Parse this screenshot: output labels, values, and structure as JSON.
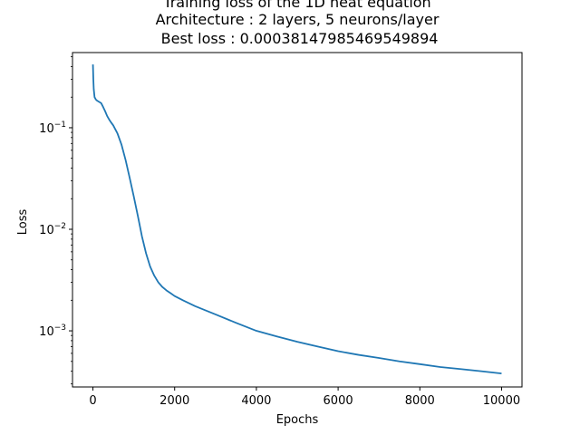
{
  "chart_data": {
    "type": "line",
    "title_lines": [
      "Training loss of the 1D heat equation",
      "Architecture : 2 layers, 5 neurons/layer",
      " Best loss : 0.00038147985469549894"
    ],
    "xlabel": "Epochs",
    "ylabel": "Loss",
    "xlim": [
      -500,
      10500
    ],
    "ylim": [
      0.00028,
      0.55
    ],
    "yscale": "log",
    "grid": false,
    "legend": "none",
    "x_ticks": [
      0,
      2000,
      4000,
      6000,
      8000,
      10000
    ],
    "x_tick_labels": [
      "0",
      "2000",
      "4000",
      "6000",
      "8000",
      "10000"
    ],
    "y_ticks": [
      0.1,
      0.01,
      0.001
    ],
    "y_tick_labels": [
      {
        "base": "10",
        "exp": "−1"
      },
      {
        "base": "10",
        "exp": "−2"
      },
      {
        "base": "10",
        "exp": "−3"
      }
    ],
    "series": [
      {
        "color": "#1f77b4",
        "x": [
          0,
          10,
          20,
          40,
          70,
          100,
          150,
          200,
          250,
          300,
          350,
          400,
          450,
          500,
          600,
          700,
          800,
          900,
          1000,
          1100,
          1200,
          1300,
          1400,
          1500,
          1600,
          1700,
          1800,
          1900,
          2000,
          2200,
          2500,
          3000,
          3500,
          4000,
          4500,
          5000,
          5500,
          6000,
          6500,
          7000,
          7500,
          8000,
          8500,
          9000,
          9500,
          10000
        ],
        "y": [
          0.42,
          0.3,
          0.24,
          0.2,
          0.19,
          0.185,
          0.18,
          0.175,
          0.16,
          0.145,
          0.13,
          0.12,
          0.112,
          0.105,
          0.088,
          0.068,
          0.048,
          0.032,
          0.021,
          0.0135,
          0.0085,
          0.0058,
          0.0043,
          0.0035,
          0.003,
          0.0027,
          0.0025,
          0.00235,
          0.0022,
          0.002,
          0.00175,
          0.00145,
          0.0012,
          0.001,
          0.00088,
          0.00078,
          0.0007,
          0.00063,
          0.00058,
          0.00054,
          0.0005,
          0.00047,
          0.00044,
          0.00042,
          0.0004,
          0.00038
        ]
      }
    ]
  }
}
